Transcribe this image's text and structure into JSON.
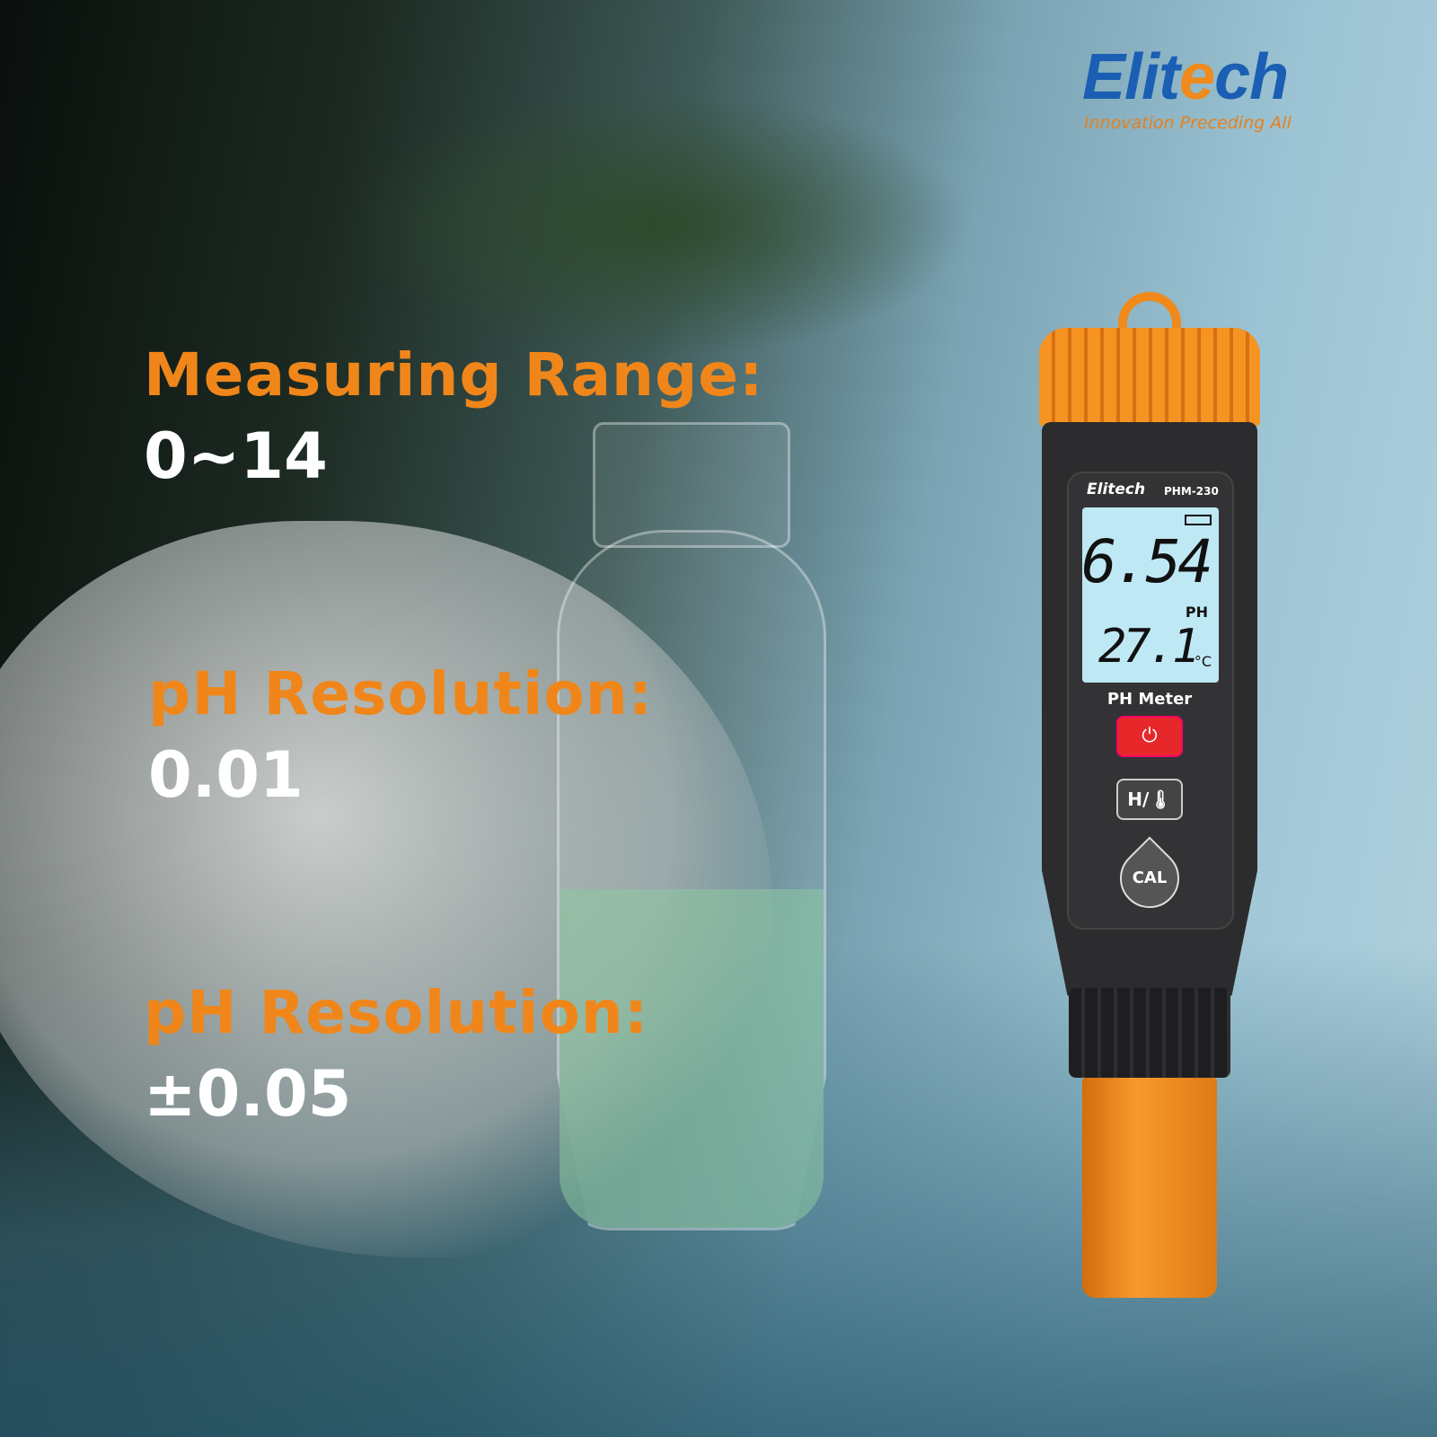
{
  "brand": {
    "name_prefix": "Elit",
    "name_accent": "e",
    "name_suffix": "ch",
    "tagline": "Innovation Preceding All",
    "colors": {
      "blue": "#1a5fb4",
      "orange": "#f08a1c"
    }
  },
  "specs": [
    {
      "label": "Measuring Range:",
      "value": "0~14"
    },
    {
      "label": "pH Resolution:",
      "value": "0.01"
    },
    {
      "label": "pH Resolution:",
      "value": "±0.05"
    }
  ],
  "device": {
    "brand": "Elitech",
    "model": "PHM-230",
    "ph_reading": "6.54",
    "ph_unit": "PH",
    "temp_reading": "27.1",
    "temp_unit": "°C",
    "label": "PH Meter",
    "power_icon": "⏻",
    "mode_button": "H/🌡",
    "cal_button": "CAL",
    "battery_icon": "battery-full-icon"
  }
}
